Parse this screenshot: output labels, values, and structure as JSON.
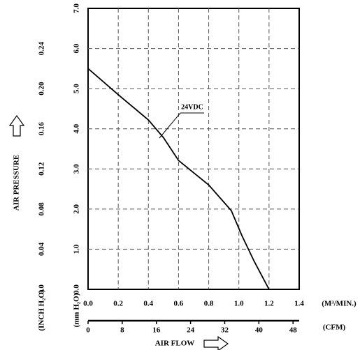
{
  "chart_data": {
    "type": "line",
    "x_label": "(M³/MIN.)",
    "x2_label": "(CFM)",
    "x_title": "AIR FLOW",
    "y_title": "AIR PRESSURE",
    "y_label": "(mm H₂O)",
    "y2_label": "(INCH H₂O)",
    "x": [
      0,
      0.2,
      0.4,
      0.5,
      0.6,
      0.8,
      0.95,
      1.02,
      1.1,
      1.2
    ],
    "series": [
      {
        "name": "24VDC",
        "color": "#000000",
        "values": [
          5.5,
          4.85,
          4.22,
          3.78,
          3.21,
          2.6,
          1.96,
          1.34,
          0.71,
          0
        ]
      }
    ],
    "xlim": [
      0,
      1.4
    ],
    "xticks": [
      {
        "value": 0,
        "label": "0.0"
      },
      0.2,
      0.4,
      0.6,
      0.8,
      {
        "value": 1,
        "label": "1.0"
      },
      1.2,
      1.4
    ],
    "x2lim": [
      0,
      49.44
    ],
    "x2ticks": [
      0,
      8,
      16,
      24,
      32,
      40,
      48
    ],
    "ylim": [
      0,
      7
    ],
    "yticks": [
      {
        "value": 0,
        "label": "0.0"
      },
      {
        "value": 1,
        "label": "1.0"
      },
      {
        "value": 2,
        "label": "2.0"
      },
      {
        "value": 3,
        "label": "3.0"
      },
      {
        "value": 4,
        "label": "4.0"
      },
      {
        "value": 5,
        "label": "5.0"
      },
      {
        "value": 6,
        "label": "6.0"
      },
      {
        "value": 7,
        "label": "7.0"
      }
    ],
    "y2lim": [
      0,
      0.28
    ],
    "y2ticks": [
      {
        "value": 0,
        "label": "0.0"
      },
      0.04,
      0.08,
      0.12,
      0.16,
      {
        "value": 0.2,
        "label": "0.20"
      },
      0.24
    ],
    "grid": true
  }
}
